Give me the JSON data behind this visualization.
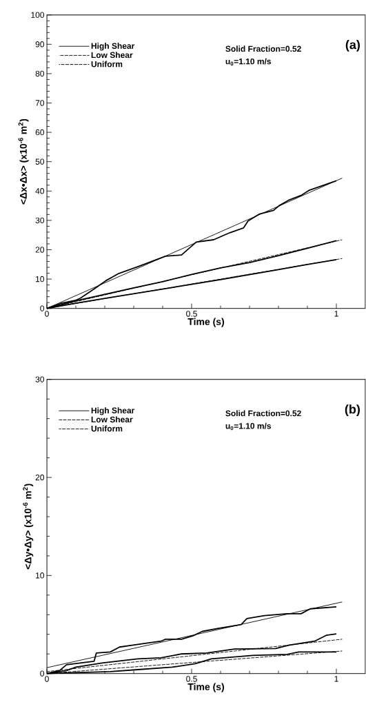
{
  "chart_data": [
    {
      "type": "line",
      "xlabel": "Time (s)",
      "ylabel": "<Δx•Δx> (x10$^{-6}$ m$^{2}$)",
      "annotations": [
        "Solid Fraction=0.52",
        "u$_{0}$=1.10 m/s",
        "(a)"
      ],
      "xlim": [
        0,
        1.1
      ],
      "ylim": [
        0,
        100
      ],
      "xticks": [
        0,
        0.5,
        1
      ],
      "yticks": [
        0,
        10,
        20,
        30,
        40,
        50,
        60,
        70,
        80,
        90,
        100
      ],
      "legend": "top left",
      "grid": false,
      "series": [
        {
          "name": "High Shear",
          "color": "#000000",
          "line_style": "solid",
          "x": [
            0,
            1.02
          ],
          "values": [
            0,
            44.4
          ]
        },
        {
          "name": "Low Shear",
          "color": "#000000",
          "line_style": "dashed",
          "x": [
            0,
            1.02
          ],
          "values": [
            0,
            23.4
          ]
        },
        {
          "name": "Uniform",
          "color": "#000000",
          "line_style": "dashed",
          "x": [
            0,
            1.02
          ],
          "values": [
            0,
            17.0
          ]
        },
        {
          "color": "#000000",
          "line_style": "solid",
          "x": [
            0,
            0.05,
            0.1,
            0.116,
            0.163,
            0.203,
            0.246,
            0.314,
            0.41,
            0.465,
            0.516,
            0.576,
            0.632,
            0.679,
            0.695,
            0.735,
            0.783,
            0.802,
            0.838,
            0.878,
            0.905,
            1.0
          ],
          "values": [
            0,
            1.8,
            2.8,
            3.5,
            6.6,
            9.4,
            11.8,
            14.2,
            17.8,
            18.2,
            22.6,
            23.4,
            25.8,
            27.4,
            29.8,
            32.2,
            33.4,
            35.0,
            37.0,
            38.5,
            40.2,
            43.5
          ]
        },
        {
          "color": "#000000",
          "line_style": "solid",
          "x": [
            0,
            0.1,
            0.2,
            0.3,
            0.4,
            0.5,
            0.6,
            0.7,
            0.8,
            0.9,
            1.0
          ],
          "values": [
            0,
            2.6,
            4.8,
            7.0,
            9.1,
            11.6,
            13.8,
            15.6,
            18.0,
            20.5,
            23.1
          ]
        },
        {
          "color": "#000000",
          "line_style": "solid",
          "x": [
            0,
            0.1,
            0.2,
            0.3,
            0.4,
            0.5,
            0.6,
            0.7,
            0.8,
            0.9,
            1.0
          ],
          "values": [
            0,
            1.8,
            3.4,
            5.0,
            6.6,
            8.2,
            9.8,
            11.5,
            13.2,
            15.0,
            16.6
          ]
        }
      ]
    },
    {
      "type": "line",
      "xlabel": "Time (s)",
      "ylabel": "<Δy•Δy> (x10$^{-6}$ m$^{2}$)",
      "annotations": [
        "Solid Fraction=0.52",
        "u$_{0}$=1.10 m/s",
        "(b)"
      ],
      "xlim": [
        0,
        1.1
      ],
      "ylim": [
        0,
        30
      ],
      "xticks": [
        0,
        0.5,
        1
      ],
      "yticks": [
        0,
        10,
        20,
        30
      ],
      "legend": "top left",
      "grid": false,
      "series": [
        {
          "name": "High Shear",
          "color": "#000000",
          "line_style": "solid",
          "x": [
            0,
            1.02
          ],
          "values": [
            0.6,
            7.3
          ]
        },
        {
          "name": "Low Shear",
          "color": "#000000",
          "line_style": "dashed",
          "x": [
            0,
            1.02
          ],
          "values": [
            0.2,
            3.5
          ]
        },
        {
          "name": "Uniform",
          "color": "#000000",
          "line_style": "dashed",
          "x": [
            0,
            1.02
          ],
          "values": [
            0,
            2.3
          ]
        },
        {
          "color": "#000000",
          "line_style": "solid",
          "x": [
            0,
            0.044,
            0.068,
            0.163,
            0.171,
            0.219,
            0.251,
            0.298,
            0.394,
            0.41,
            0.465,
            0.505,
            0.537,
            0.592,
            0.632,
            0.671,
            0.691,
            0.751,
            0.83,
            0.878,
            0.91,
            1.0
          ],
          "values": [
            0,
            0.3,
            0.9,
            1.25,
            2.1,
            2.2,
            2.7,
            2.9,
            3.3,
            3.5,
            3.5,
            3.85,
            4.3,
            4.6,
            4.8,
            5.0,
            5.6,
            5.9,
            6.1,
            6.1,
            6.6,
            6.8
          ]
        },
        {
          "color": "#000000",
          "line_style": "solid",
          "x": [
            0,
            0.068,
            0.1,
            0.195,
            0.314,
            0.394,
            0.465,
            0.552,
            0.648,
            0.79,
            0.838,
            0.925,
            0.965,
            1.0
          ],
          "values": [
            0,
            0.3,
            0.66,
            1.1,
            1.5,
            1.6,
            2.0,
            2.1,
            2.5,
            2.55,
            2.9,
            3.3,
            3.9,
            4.05
          ]
        },
        {
          "color": "#000000",
          "line_style": "solid",
          "x": [
            0,
            0.219,
            0.314,
            0.433,
            0.513,
            0.568,
            0.711,
            0.83,
            0.87,
            1.0
          ],
          "values": [
            0,
            0.2,
            0.4,
            0.65,
            1.0,
            1.5,
            1.85,
            1.95,
            2.2,
            2.2
          ]
        }
      ]
    }
  ]
}
